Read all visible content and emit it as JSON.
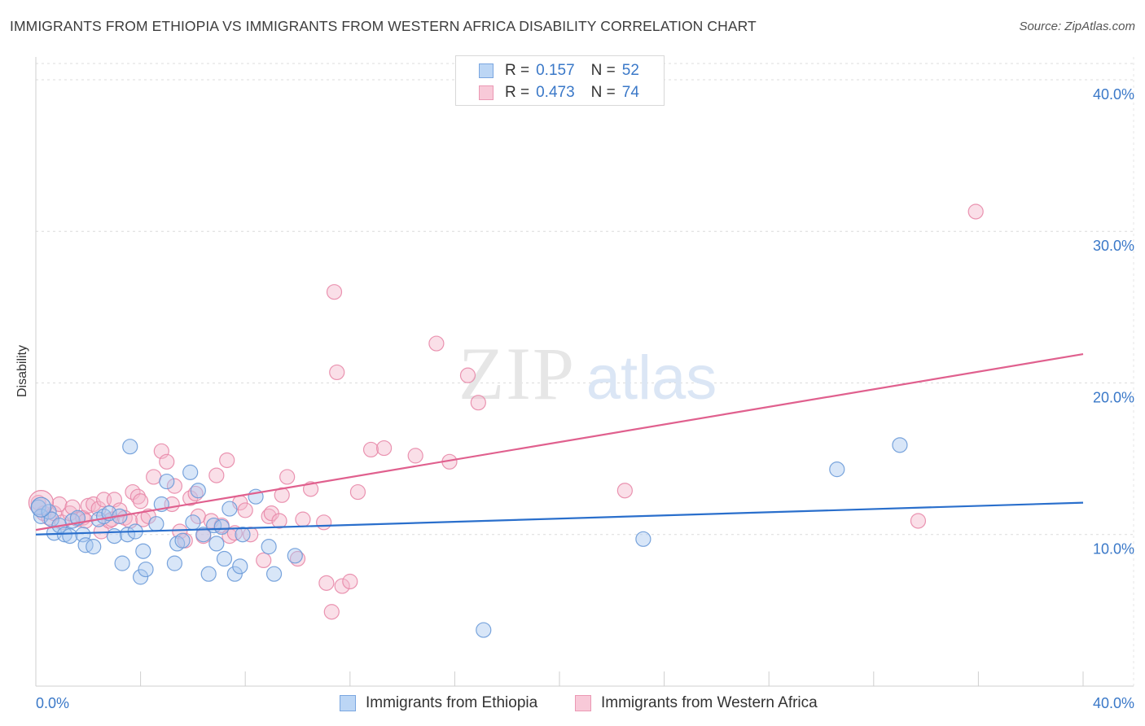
{
  "title": "IMMIGRANTS FROM ETHIOPIA VS IMMIGRANTS FROM WESTERN AFRICA DISABILITY CORRELATION CHART",
  "source": "Source: ZipAtlas.com",
  "watermark": {
    "zip": "ZIP",
    "atlas": "atlas"
  },
  "legend": {
    "ethiopia": {
      "r_label": "R =",
      "r_value": "0.157",
      "n_label": "N =",
      "n_value": "52"
    },
    "western_africa": {
      "r_label": "R =",
      "r_value": "0.473",
      "n_label": "N =",
      "n_value": "74"
    }
  },
  "chart_data": {
    "type": "scatter",
    "title": "IMMIGRANTS FROM ETHIOPIA VS IMMIGRANTS FROM WESTERN AFRICA DISABILITY CORRELATION CHART",
    "xlabel": "",
    "ylabel": "Disability",
    "xlim": [
      0,
      40
    ],
    "ylim": [
      0,
      41.5
    ],
    "x_tick_labels": [
      "0.0%",
      "40.0%"
    ],
    "y_ticks": [
      10,
      20,
      30,
      40
    ],
    "y_tick_labels": [
      "10.0%",
      "20.0%",
      "30.0%",
      "40.0%"
    ],
    "grid": true,
    "legend_position": "top-center",
    "colors": {
      "ethiopia_fill": "#a8c8f0",
      "ethiopia_stroke": "#6a9ad8",
      "ethiopia_line": "#2a6fcc",
      "western_africa_fill": "#f5b8cc",
      "western_africa_stroke": "#e888a8",
      "western_africa_line": "#e0608e",
      "tick_label": "#3a78c8"
    },
    "series": [
      {
        "name": "Immigrants from Ethiopia",
        "r": 0.157,
        "n": 52,
        "trend": {
          "x": [
            0,
            40
          ],
          "y": [
            10.0,
            12.1
          ]
        },
        "points": [
          [
            0.1,
            11.8
          ],
          [
            0.2,
            11.2
          ],
          [
            0.5,
            11.5
          ],
          [
            0.6,
            11.0
          ],
          [
            0.7,
            10.1
          ],
          [
            0.9,
            10.6
          ],
          [
            1.1,
            10.0
          ],
          [
            1.3,
            9.9
          ],
          [
            1.4,
            10.9
          ],
          [
            1.6,
            11.1
          ],
          [
            1.8,
            10.0
          ],
          [
            1.9,
            9.3
          ],
          [
            2.2,
            9.2
          ],
          [
            2.4,
            11.0
          ],
          [
            2.6,
            11.2
          ],
          [
            2.8,
            11.4
          ],
          [
            3.0,
            9.9
          ],
          [
            3.2,
            11.2
          ],
          [
            3.3,
            8.1
          ],
          [
            3.5,
            10.0
          ],
          [
            3.6,
            15.8
          ],
          [
            3.8,
            10.2
          ],
          [
            4.0,
            7.2
          ],
          [
            4.1,
            8.9
          ],
          [
            4.2,
            7.7
          ],
          [
            4.6,
            10.7
          ],
          [
            4.8,
            12.0
          ],
          [
            5.0,
            13.5
          ],
          [
            5.3,
            8.1
          ],
          [
            5.4,
            9.4
          ],
          [
            5.6,
            9.6
          ],
          [
            5.9,
            14.1
          ],
          [
            6.0,
            10.8
          ],
          [
            6.2,
            12.9
          ],
          [
            6.4,
            10.0
          ],
          [
            6.6,
            7.4
          ],
          [
            6.8,
            10.6
          ],
          [
            6.9,
            9.4
          ],
          [
            7.1,
            10.5
          ],
          [
            7.2,
            8.4
          ],
          [
            7.4,
            11.7
          ],
          [
            7.6,
            7.4
          ],
          [
            7.8,
            7.9
          ],
          [
            7.9,
            10.0
          ],
          [
            8.4,
            12.5
          ],
          [
            8.9,
            9.2
          ],
          [
            9.1,
            7.4
          ],
          [
            9.9,
            8.6
          ],
          [
            17.1,
            3.7
          ],
          [
            23.2,
            9.7
          ],
          [
            30.6,
            14.3
          ],
          [
            33.0,
            15.9
          ]
        ]
      },
      {
        "name": "Immigrants from Western Africa",
        "r": 0.473,
        "n": 74,
        "trend": {
          "x": [
            0,
            40
          ],
          "y": [
            10.3,
            21.9
          ]
        },
        "points": [
          [
            0.1,
            12.1
          ],
          [
            0.3,
            11.4
          ],
          [
            0.5,
            11.1
          ],
          [
            0.7,
            11.4
          ],
          [
            0.9,
            12.0
          ],
          [
            1.0,
            10.8
          ],
          [
            1.3,
            11.4
          ],
          [
            1.4,
            11.8
          ],
          [
            1.6,
            11.0
          ],
          [
            1.8,
            11.1
          ],
          [
            1.9,
            10.9
          ],
          [
            2.0,
            11.9
          ],
          [
            2.2,
            12.0
          ],
          [
            2.4,
            11.7
          ],
          [
            2.5,
            10.2
          ],
          [
            2.6,
            12.3
          ],
          [
            2.8,
            10.9
          ],
          [
            2.9,
            11.0
          ],
          [
            3.0,
            12.3
          ],
          [
            3.2,
            11.6
          ],
          [
            3.4,
            11.1
          ],
          [
            3.6,
            10.9
          ],
          [
            3.7,
            12.8
          ],
          [
            3.9,
            12.5
          ],
          [
            4.0,
            12.2
          ],
          [
            4.1,
            11.0
          ],
          [
            4.3,
            11.2
          ],
          [
            4.5,
            13.8
          ],
          [
            4.8,
            15.5
          ],
          [
            5.0,
            14.8
          ],
          [
            5.2,
            12.0
          ],
          [
            5.3,
            13.2
          ],
          [
            5.5,
            10.2
          ],
          [
            5.7,
            9.6
          ],
          [
            5.9,
            12.4
          ],
          [
            6.1,
            12.7
          ],
          [
            6.2,
            11.2
          ],
          [
            6.4,
            9.9
          ],
          [
            6.7,
            10.9
          ],
          [
            6.9,
            13.9
          ],
          [
            7.1,
            10.6
          ],
          [
            7.3,
            14.9
          ],
          [
            7.4,
            9.9
          ],
          [
            7.6,
            10.1
          ],
          [
            7.8,
            12.1
          ],
          [
            8.0,
            11.6
          ],
          [
            8.2,
            10.0
          ],
          [
            8.7,
            8.3
          ],
          [
            8.9,
            11.2
          ],
          [
            9.0,
            11.4
          ],
          [
            9.3,
            10.9
          ],
          [
            9.4,
            12.6
          ],
          [
            9.6,
            13.8
          ],
          [
            10.0,
            8.4
          ],
          [
            10.2,
            11.0
          ],
          [
            10.5,
            13.0
          ],
          [
            11.0,
            10.8
          ],
          [
            11.1,
            6.8
          ],
          [
            11.3,
            4.9
          ],
          [
            11.4,
            26.0
          ],
          [
            11.5,
            20.7
          ],
          [
            11.7,
            6.6
          ],
          [
            12.0,
            6.9
          ],
          [
            12.3,
            12.8
          ],
          [
            12.8,
            15.6
          ],
          [
            13.3,
            15.7
          ],
          [
            14.5,
            15.2
          ],
          [
            15.3,
            22.6
          ],
          [
            15.8,
            14.8
          ],
          [
            16.5,
            20.5
          ],
          [
            16.9,
            18.7
          ],
          [
            22.5,
            12.9
          ],
          [
            33.7,
            10.9
          ],
          [
            35.9,
            31.3
          ]
        ]
      }
    ]
  }
}
